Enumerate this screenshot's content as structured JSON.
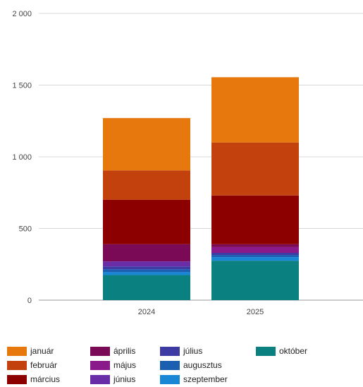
{
  "chart_data": {
    "type": "bar",
    "stacked": true,
    "categories": [
      "2024",
      "2025"
    ],
    "ylim": [
      0,
      2000
    ],
    "yticks": [
      0,
      500,
      1000,
      1500,
      2000
    ],
    "ytick_labels": [
      "0",
      "500",
      "1 000",
      "1 500",
      "2 000"
    ],
    "grid": true,
    "legend_position": "bottom",
    "series": [
      {
        "name": "október",
        "color": "#0b8080",
        "values": [
          175,
          275
        ]
      },
      {
        "name": "szeptember",
        "color": "#1a87d6",
        "values": [
          20,
          25
        ]
      },
      {
        "name": "augusztus",
        "color": "#1c5fb0",
        "values": [
          20,
          15
        ]
      },
      {
        "name": "július",
        "color": "#3d3aa3",
        "values": [
          20,
          15
        ]
      },
      {
        "name": "június",
        "color": "#6a2da8",
        "values": [
          35,
          0
        ]
      },
      {
        "name": "május",
        "color": "#8a1a8a",
        "values": [
          0,
          40
        ]
      },
      {
        "name": "április",
        "color": "#7a0a55",
        "values": [
          120,
          20
        ]
      },
      {
        "name": "március",
        "color": "#8c0000",
        "values": [
          310,
          340
        ]
      },
      {
        "name": "február",
        "color": "#c2410c",
        "values": [
          205,
          370
        ]
      },
      {
        "name": "január",
        "color": "#e6780d",
        "values": [
          365,
          455
        ]
      }
    ],
    "legend_order": [
      "január",
      "február",
      "március",
      "április",
      "május",
      "június",
      "július",
      "augusztus",
      "szeptember",
      "október"
    ]
  }
}
